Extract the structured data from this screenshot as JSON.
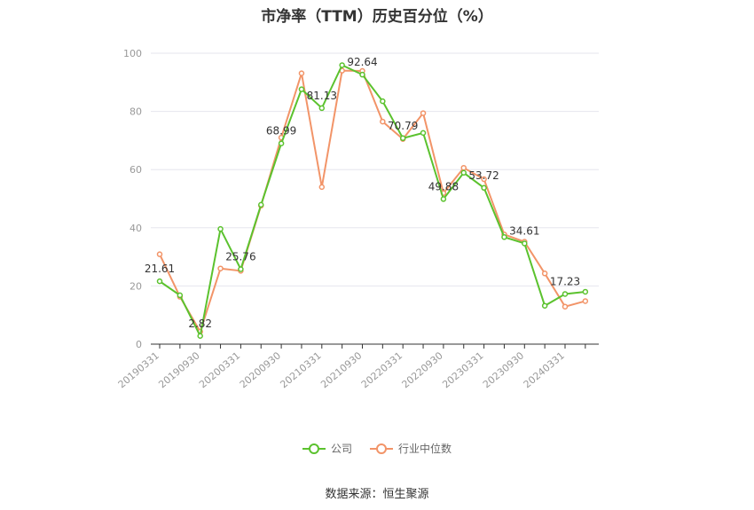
{
  "chart_data": {
    "type": "line",
    "title": "市净率（TTM）历史百分位（%）",
    "source": "数据来源：恒生聚源",
    "ylim": [
      0,
      100
    ],
    "yticks": [
      "0",
      "20",
      "40",
      "60",
      "80",
      "100"
    ],
    "tick_labels": [
      "20190331",
      "20190930",
      "20200331",
      "20200930",
      "20210331",
      "20210930",
      "20220331",
      "20220930",
      "20230331",
      "20230930",
      "20240331"
    ],
    "x": [
      "20190331",
      "20190630",
      "20190930",
      "20191231",
      "20200331",
      "20200630",
      "20200930",
      "20201231",
      "20210331",
      "20210630",
      "20210930",
      "20211231",
      "20220331",
      "20220630",
      "20220930",
      "20221231",
      "20230331",
      "20230630",
      "20230930",
      "20231231",
      "20240331",
      "20240630"
    ],
    "series": [
      {
        "name": "公司",
        "color": "#5bc22e",
        "values": [
          21.61,
          16.8,
          2.82,
          39.6,
          25.76,
          47.9,
          68.99,
          87.6,
          81.13,
          95.9,
          92.64,
          83.5,
          70.79,
          72.6,
          49.88,
          58.9,
          53.72,
          36.8,
          34.61,
          13.2,
          17.23,
          18.0
        ]
      },
      {
        "name": "行业中位数",
        "color": "#f29468",
        "values": [
          30.9,
          16.3,
          4.3,
          26.0,
          25.2,
          47.6,
          71.0,
          93.1,
          54.0,
          94.0,
          93.9,
          76.5,
          70.5,
          79.4,
          51.9,
          60.6,
          56.7,
          37.7,
          35.2,
          24.3,
          12.9,
          14.8
        ]
      }
    ],
    "data_labels": [
      {
        "index": 0,
        "text": "21.61"
      },
      {
        "index": 2,
        "text": "2.82"
      },
      {
        "index": 4,
        "text": "25.76"
      },
      {
        "index": 6,
        "text": "68.99"
      },
      {
        "index": 8,
        "text": "81.13"
      },
      {
        "index": 10,
        "text": "92.64"
      },
      {
        "index": 12,
        "text": "70.79"
      },
      {
        "index": 14,
        "text": "49.88"
      },
      {
        "index": 16,
        "text": "53.72"
      },
      {
        "index": 18,
        "text": "34.61"
      },
      {
        "index": 20,
        "text": "17.23"
      }
    ],
    "legend_position": "bottom",
    "grid": true
  }
}
